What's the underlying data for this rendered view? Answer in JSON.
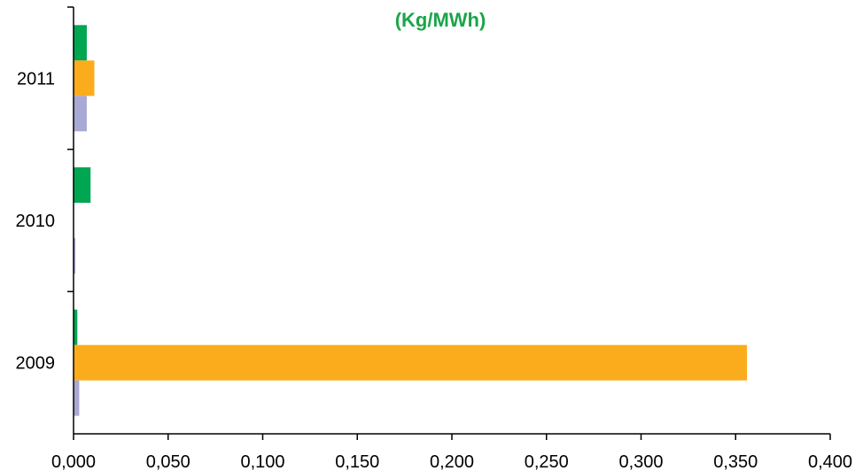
{
  "chart_data": {
    "type": "bar",
    "orientation": "horizontal",
    "title": "(Kg/MWh)",
    "title_color": "#1aa54a",
    "categories": [
      "2009",
      "2010",
      "2011"
    ],
    "series": [
      {
        "color": "#00a651",
        "values": [
          0.002,
          0.009,
          0.007
        ]
      },
      {
        "color": "#fbac1c",
        "values": [
          0.356,
          0.0,
          0.011
        ]
      },
      {
        "color": "#a9a9d6",
        "values": [
          0.003,
          0.001,
          0.007
        ]
      }
    ],
    "xlim": [
      0,
      0.4
    ],
    "xticks": [
      "0,000",
      "0,050",
      "0,100",
      "0,150",
      "0,200",
      "0,250",
      "0,300",
      "0,350",
      "0,400"
    ],
    "grid": false,
    "legend": "none"
  }
}
